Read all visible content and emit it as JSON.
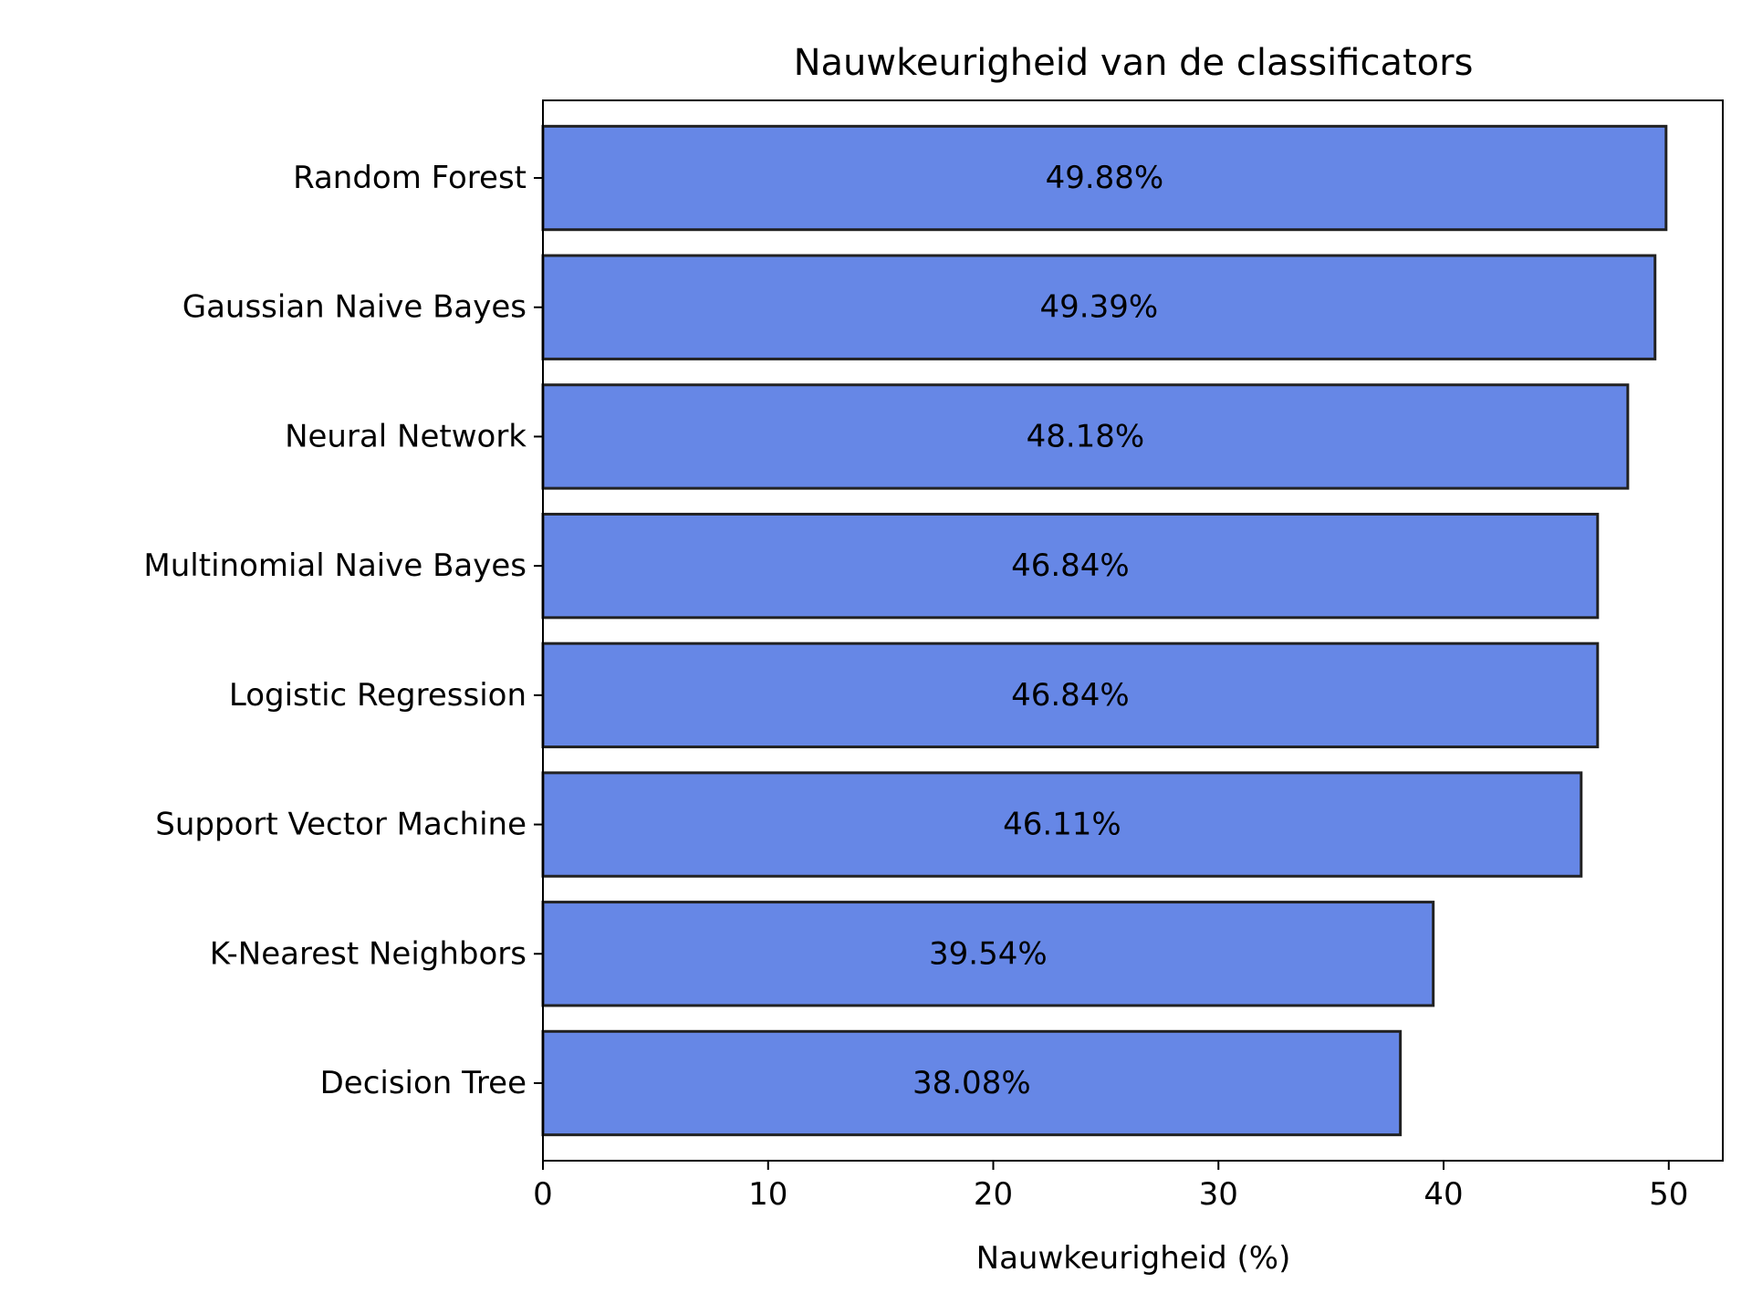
{
  "chart_data": {
    "type": "bar",
    "orientation": "horizontal",
    "title": "Nauwkeurigheid van de classificators",
    "xlabel": "Nauwkeurigheid (%)",
    "ylabel": "",
    "categories": [
      "Random Forest",
      "Gaussian Naive Bayes",
      "Neural Network",
      "Multinomial Naive Bayes",
      "Logistic Regression",
      "Support Vector Machine",
      "K-Nearest Neighbors",
      "Decision Tree"
    ],
    "values": [
      49.88,
      49.39,
      48.18,
      46.84,
      46.84,
      46.11,
      39.54,
      38.08
    ],
    "data_labels": [
      "49.88%",
      "49.39%",
      "48.18%",
      "46.84%",
      "46.84%",
      "46.11%",
      "39.54%",
      "38.08%"
    ],
    "xlim": [
      0,
      52.4
    ],
    "xticks": [
      0,
      10,
      20,
      30,
      40,
      50
    ],
    "grid": false,
    "legend": "none",
    "colors": {
      "bar_fill": "#6687e6",
      "bar_edge": "#222222",
      "axis": "#000000",
      "text": "#000000"
    }
  }
}
